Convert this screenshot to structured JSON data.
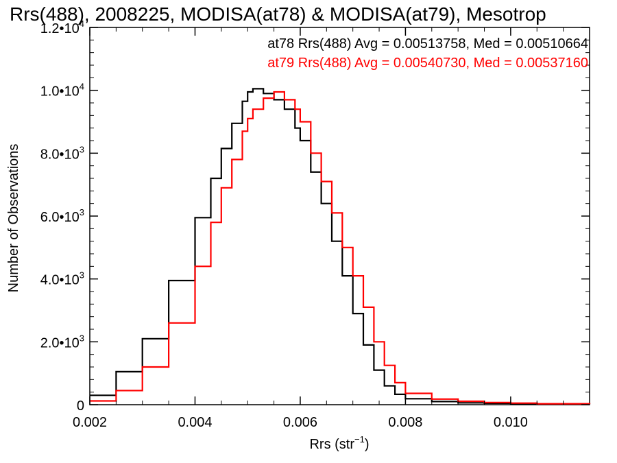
{
  "chart_data": {
    "type": "line",
    "title": "Rrs(488), 2008225, MODISA(at78) & MODISA(at79), Mesotrop",
    "xlabel": "Rrs (str",
    "xlabel_sup": "−1",
    "xlabel_end": ")",
    "ylabel": "Number of Observations",
    "xlim": [
      0.002,
      0.0115
    ],
    "ylim": [
      0,
      12000
    ],
    "x_ticks": [
      {
        "value": 0.002,
        "label": "0.002"
      },
      {
        "value": 0.004,
        "label": "0.004"
      },
      {
        "value": 0.006,
        "label": "0.006"
      },
      {
        "value": 0.008,
        "label": "0.008"
      },
      {
        "value": 0.01,
        "label": "0.010"
      }
    ],
    "y_ticks": [
      {
        "value": 0,
        "label": "0",
        "sup": ""
      },
      {
        "value": 2000,
        "label": "2.0•10",
        "sup": "3"
      },
      {
        "value": 4000,
        "label": "4.0•10",
        "sup": "3"
      },
      {
        "value": 6000,
        "label": "6.0•10",
        "sup": "3"
      },
      {
        "value": 8000,
        "label": "8.0•10",
        "sup": "3"
      },
      {
        "value": 10000,
        "label": "1.0•10",
        "sup": "4"
      },
      {
        "value": 12000,
        "label": "1.2•10",
        "sup": "4"
      }
    ],
    "legend_text": [
      "at78 Rrs(488) Avg = 0.00513758, Med = 0.00510664",
      "at79 Rrs(488) Avg = 0.00540730, Med = 0.00537160"
    ],
    "legend_position": "top-right",
    "series": [
      {
        "color": "#000000",
        "x": [
          0.002,
          0.0025,
          0.003,
          0.0035,
          0.004,
          0.0043,
          0.0045,
          0.0047,
          0.0049,
          0.005,
          0.0051,
          0.0053,
          0.0055,
          0.0057,
          0.0059,
          0.006,
          0.0062,
          0.0064,
          0.0066,
          0.0068,
          0.007,
          0.0072,
          0.0074,
          0.0076,
          0.0078,
          0.008,
          0.0085,
          0.009,
          0.0095,
          0.01,
          0.0105,
          0.0115
        ],
        "y": [
          300,
          1050,
          2100,
          3950,
          5950,
          7200,
          8150,
          8950,
          9650,
          9950,
          10050,
          9900,
          9700,
          9400,
          8800,
          8400,
          7400,
          6400,
          5200,
          4100,
          2900,
          1900,
          1100,
          600,
          330,
          190,
          100,
          60,
          45,
          35,
          25,
          20
        ]
      },
      {
        "color": "#ff0000",
        "x": [
          0.002,
          0.0025,
          0.003,
          0.0035,
          0.004,
          0.0043,
          0.0045,
          0.0047,
          0.0049,
          0.005,
          0.0051,
          0.0053,
          0.0055,
          0.0057,
          0.0059,
          0.006,
          0.0062,
          0.0064,
          0.0066,
          0.0068,
          0.007,
          0.0072,
          0.0074,
          0.0076,
          0.0078,
          0.008,
          0.0085,
          0.009,
          0.0095,
          0.01,
          0.0105,
          0.0115
        ],
        "y": [
          120,
          450,
          1200,
          2600,
          4400,
          5800,
          6900,
          7800,
          8700,
          9100,
          9400,
          9750,
          9950,
          9700,
          9400,
          9000,
          8000,
          7100,
          6100,
          5000,
          4100,
          3100,
          2000,
          1250,
          700,
          360,
          180,
          110,
          70,
          50,
          30,
          20
        ]
      }
    ]
  }
}
